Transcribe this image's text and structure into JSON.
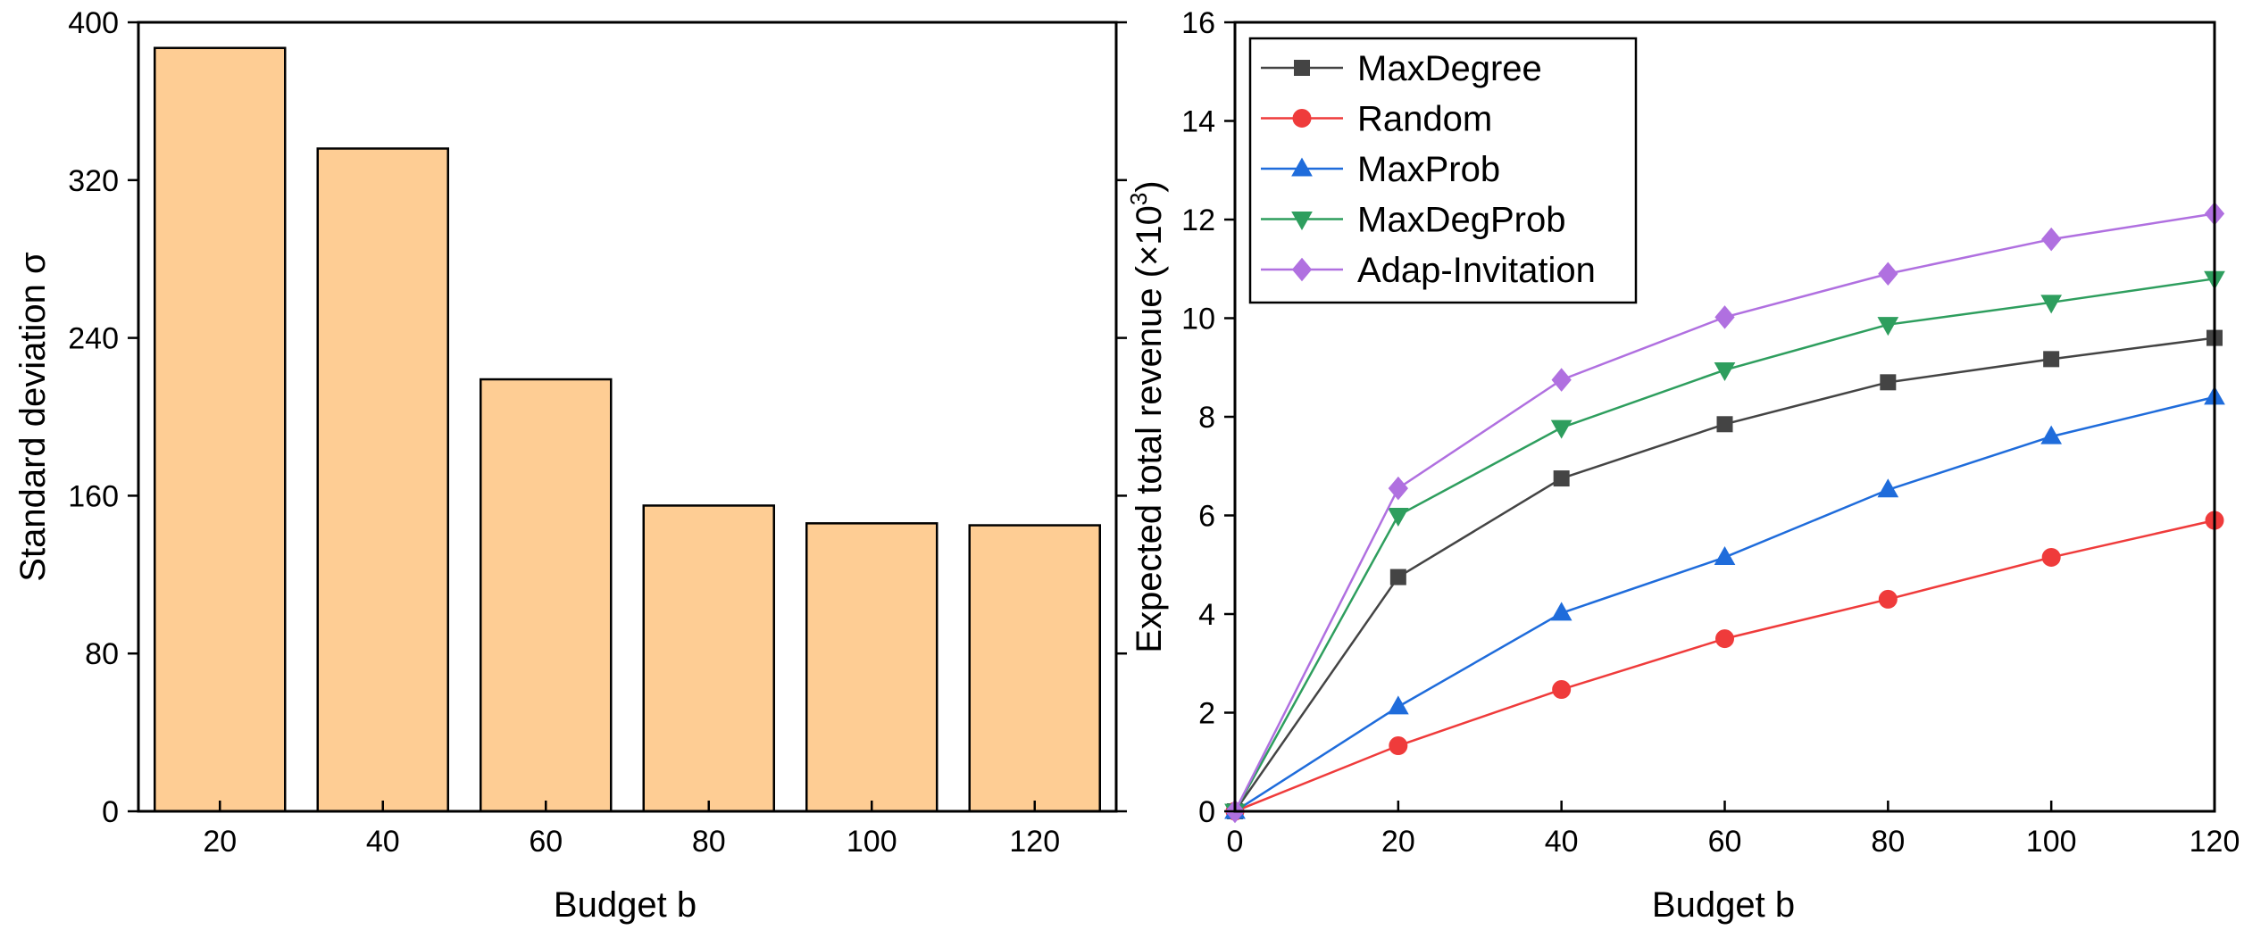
{
  "chart_data": [
    {
      "type": "bar",
      "categories": [
        "20",
        "40",
        "60",
        "80",
        "100",
        "120"
      ],
      "values": [
        387,
        336,
        219,
        155,
        146,
        145
      ],
      "xlabel": "Budget b",
      "ylabel": "Standard deviation σ",
      "ylim": [
        0,
        400
      ],
      "yticks": [
        "0",
        "80",
        "160",
        "240",
        "320",
        "400"
      ],
      "bar_color": "#fecd94",
      "grid": false
    },
    {
      "type": "line",
      "x": [
        0,
        20,
        40,
        60,
        80,
        100,
        120
      ],
      "xticks": [
        "0",
        "20",
        "40",
        "60",
        "80",
        "100",
        "120"
      ],
      "xlim": [
        0,
        120
      ],
      "ylim": [
        0,
        16
      ],
      "yticks": [
        "0",
        "2",
        "4",
        "6",
        "8",
        "10",
        "12",
        "14",
        "16"
      ],
      "xlabel": "Budget b",
      "ylabel": "Expected total revenue (×10",
      "ylabel_exponent": "3",
      "ylabel_suffix": ")",
      "legend_position": "top-left",
      "grid": false,
      "series": [
        {
          "name": "MaxDegree",
          "values": [
            0,
            4.75,
            6.75,
            7.85,
            8.7,
            9.17,
            9.6
          ],
          "color": "#444444",
          "marker": "square"
        },
        {
          "name": "Random",
          "values": [
            0,
            1.33,
            2.47,
            3.5,
            4.3,
            5.15,
            5.9
          ],
          "color": "#ef3b3b",
          "marker": "circle"
        },
        {
          "name": "MaxProb",
          "values": [
            0,
            2.12,
            4.02,
            5.15,
            6.52,
            7.6,
            8.4
          ],
          "color": "#1f6cdb",
          "marker": "triangle-up"
        },
        {
          "name": "MaxDegProb",
          "values": [
            0,
            6.0,
            7.78,
            8.95,
            9.87,
            10.32,
            10.8
          ],
          "color": "#2e9e5e",
          "marker": "triangle-down"
        },
        {
          "name": "Adap-Invitation",
          "values": [
            0,
            6.55,
            8.75,
            10.02,
            10.9,
            11.6,
            12.12
          ],
          "color": "#b070e0",
          "marker": "diamond"
        }
      ]
    }
  ]
}
